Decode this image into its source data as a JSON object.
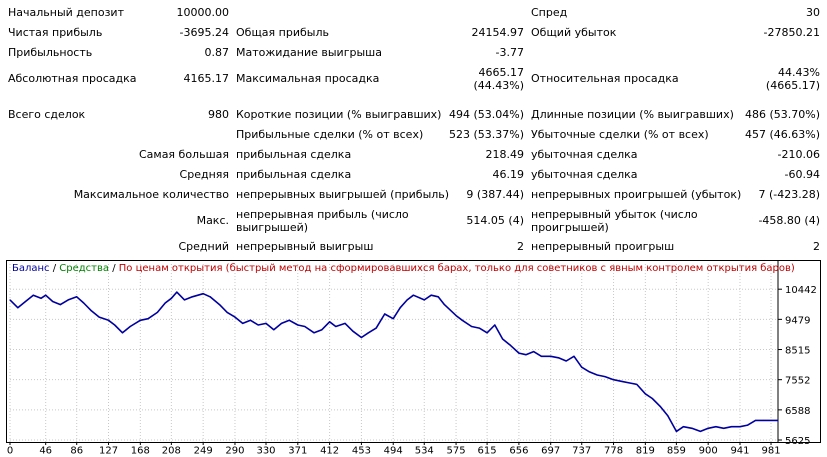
{
  "report": {
    "rows": [
      {
        "id": "row-deposit",
        "c1": "Начальный депозит",
        "v1": "10000.00",
        "c2": "",
        "v2": "",
        "c3": "Спред",
        "v3": "30"
      },
      {
        "id": "row-net-profit",
        "c1": "Чистая прибыль",
        "v1": "-3695.24",
        "c2": "Общая прибыль",
        "v2": "24154.97",
        "c3": "Общий убыток",
        "v3": "-27850.21"
      },
      {
        "id": "row-profitability",
        "c1": "Прибыльность",
        "v1": "0.87",
        "c2": "Матожидание выигрыша",
        "v2": "-3.77",
        "c3": "",
        "v3": ""
      },
      {
        "id": "row-drawdown",
        "c1": "Абсолютная просадка",
        "v1": "4165.17",
        "c2": "Максимальная просадка",
        "v2a": "4665.17",
        "v2b": "(44.43%)",
        "c3": "Относительная просадка",
        "v3a": "44.43%",
        "v3b": "(4665.17)"
      },
      {
        "id": "row-total-trades",
        "c1": "Всего сделок",
        "v1": "980",
        "c2": "Короткие позиции (% выигравших)",
        "v2": "494 (53.04%)",
        "c3": "Длинные позиции (% выигравших)",
        "v3": "486 (53.70%)"
      },
      {
        "id": "row-profit-trades",
        "c1": "",
        "v1": "",
        "c2": "Прибыльные сделки (% от всех)",
        "v2": "523 (53.37%)",
        "c3": "Убыточные сделки (% от всех)",
        "v3": "457 (46.63%)"
      },
      {
        "id": "row-largest",
        "c1": "Самая большая",
        "v1": "",
        "c2": "прибыльная сделка",
        "v2": "218.49",
        "c3": "убыточная сделка",
        "v3": "-210.06"
      },
      {
        "id": "row-average",
        "c1": "Средняя",
        "v1": "",
        "c2": "прибыльная сделка",
        "v2": "46.19",
        "c3": "убыточная сделка",
        "v3": "-60.94"
      },
      {
        "id": "row-max-count",
        "c1": "Максимальное количество",
        "v1": "",
        "c2": "непрерывных выигрышей (прибыль)",
        "v2": "9 (387.44)",
        "c3": "непрерывных проигрышей (убыток)",
        "v3": "7 (-423.28)"
      },
      {
        "id": "row-max",
        "c1": "Макс.",
        "v1": "",
        "c2": "непрерывная прибыль (число выигрышей)",
        "v2": "514.05 (4)",
        "c3": "непрерывный убыток (число проигрышей)",
        "v3": "-458.80 (4)"
      },
      {
        "id": "row-avg-series",
        "c1": "Средний",
        "v1": "",
        "c2": "непрерывный выигрыш",
        "v2": "2",
        "c3": "непрерывный проигрыш",
        "v3": "2"
      }
    ]
  },
  "chart": {
    "legend": {
      "balance": "Баланс",
      "separator": " / ",
      "equity": "Средства",
      "separator2": " / ",
      "mode": "По ценам открытия (быстрый метод на сформировавшихся барах, только для советников с явным контролем открытия баров)"
    },
    "colors": {
      "balance": "#0000a0",
      "equity": "#008000",
      "mode": "#c00000",
      "grid": "#c8c8c8"
    }
  },
  "chart_data": {
    "type": "line",
    "title": "",
    "xlabel": "",
    "ylabel": "",
    "x_ticks": [
      "0",
      "46",
      "86",
      "127",
      "168",
      "208",
      "249",
      "290",
      "330",
      "371",
      "412",
      "453",
      "494",
      "534",
      "575",
      "615",
      "656",
      "697",
      "737",
      "778",
      "819",
      "859",
      "900",
      "941",
      "981"
    ],
    "y_ticks": [
      "10442",
      "9479",
      "8515",
      "7552",
      "6588",
      "5625"
    ],
    "xlim": [
      0,
      990
    ],
    "ylim": [
      5625,
      10800
    ],
    "grid": true,
    "series": [
      {
        "name": "Баланс",
        "x": [
          0,
          10,
          20,
          30,
          40,
          46,
          55,
          65,
          75,
          86,
          95,
          105,
          115,
          127,
          135,
          145,
          155,
          168,
          178,
          190,
          200,
          208,
          215,
          225,
          235,
          249,
          258,
          270,
          280,
          290,
          300,
          310,
          320,
          330,
          340,
          350,
          360,
          371,
          380,
          392,
          402,
          412,
          420,
          432,
          442,
          453,
          462,
          472,
          483,
          494,
          503,
          512,
          520,
          534,
          543,
          552,
          560,
          575,
          583,
          595,
          605,
          615,
          625,
          635,
          645,
          656,
          665,
          675,
          685,
          697,
          707,
          717,
          727,
          737,
          747,
          757,
          767,
          778,
          788,
          798,
          808,
          819,
          828,
          838,
          848,
          859,
          868,
          879,
          890,
          900,
          910,
          920,
          930,
          941,
          951,
          961,
          971,
          981,
          990
        ],
        "values": [
          10100,
          9850,
          10050,
          10250,
          10150,
          10250,
          10050,
          9950,
          10100,
          10200,
          10000,
          9750,
          9550,
          9450,
          9300,
          9050,
          9250,
          9450,
          9500,
          9700,
          10000,
          10150,
          10350,
          10100,
          10200,
          10300,
          10200,
          9950,
          9700,
          9550,
          9350,
          9450,
          9300,
          9350,
          9150,
          9350,
          9450,
          9300,
          9250,
          9050,
          9150,
          9400,
          9250,
          9350,
          9100,
          8900,
          9050,
          9200,
          9650,
          9500,
          9850,
          10100,
          10250,
          10100,
          10250,
          10200,
          9950,
          9600,
          9450,
          9250,
          9200,
          9050,
          9300,
          8850,
          8650,
          8400,
          8350,
          8450,
          8300,
          8300,
          8250,
          8150,
          8300,
          7950,
          7800,
          7700,
          7650,
          7550,
          7500,
          7450,
          7400,
          7100,
          6950,
          6700,
          6400,
          5900,
          6050,
          6000,
          5900,
          6000,
          6050,
          6000,
          6050,
          6050,
          6100,
          6250,
          6250,
          6250,
          6250
        ]
      }
    ]
  }
}
